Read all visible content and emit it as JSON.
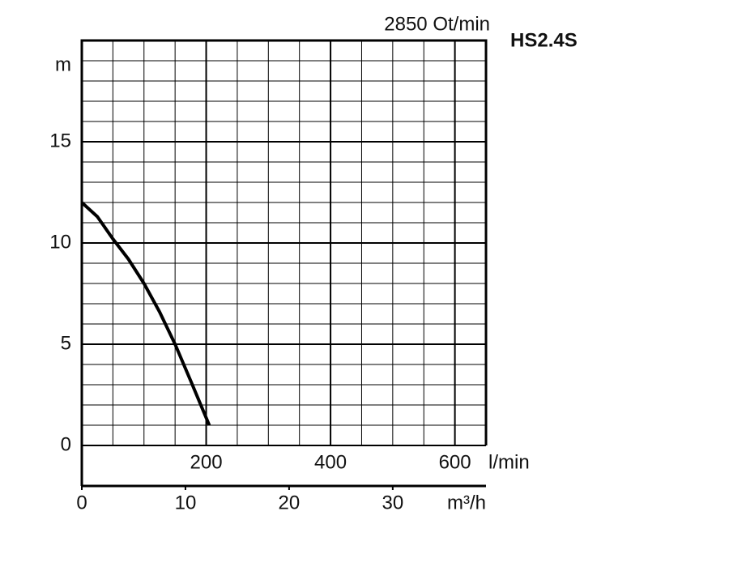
{
  "chart_data": {
    "type": "line",
    "title": "HS2.4S",
    "subtitle": "2850 Ot/min",
    "y_label": "m",
    "x_label": "l/min",
    "x2_label": "m³/h",
    "x": [
      0,
      25,
      50,
      75,
      100,
      125,
      150,
      175,
      205
    ],
    "series": [
      {
        "color": "#000000",
        "values": [
          12,
          11.3,
          10.2,
          9.2,
          8,
          6.6,
          5,
          3.2,
          1
        ]
      }
    ],
    "xlim": [
      0,
      650
    ],
    "xticks": [
      200,
      400,
      600
    ],
    "xgrid": [
      50,
      100,
      150,
      200,
      250,
      300,
      350,
      400,
      450,
      500,
      550,
      600
    ],
    "x2lim": [
      0,
      39
    ],
    "x2ticks": [
      0,
      10,
      20,
      30
    ],
    "ylim": [
      0,
      20
    ],
    "yticks": [
      0,
      5,
      10,
      15
    ],
    "ygrid": [
      1,
      2,
      3,
      4,
      5,
      6,
      7,
      8,
      9,
      10,
      11,
      12,
      13,
      14,
      15,
      16,
      17,
      18,
      19
    ],
    "grid": true
  }
}
